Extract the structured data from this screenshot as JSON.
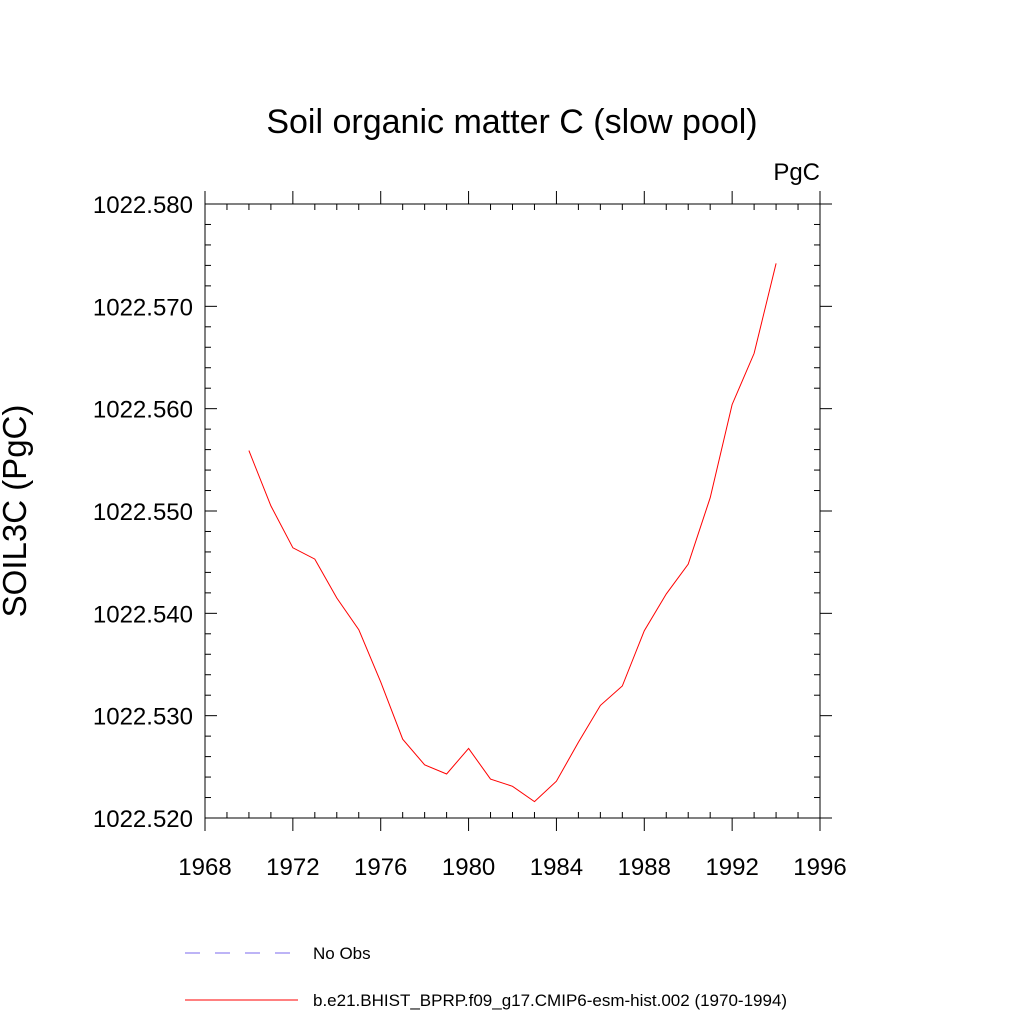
{
  "chart_data": {
    "type": "line",
    "title": "Soil organic matter C (slow pool)",
    "units": "PgC",
    "ylabel": "SOIL3C  (PgC)",
    "xlabel": "",
    "xlim": [
      1968,
      1996
    ],
    "ylim": [
      1022.52,
      1022.58
    ],
    "x_ticks": [
      1968,
      1972,
      1976,
      1980,
      1984,
      1988,
      1992,
      1996
    ],
    "x_tick_labels": [
      "1968",
      "1972",
      "1976",
      "1980",
      "1984",
      "1988",
      "1992",
      "1996"
    ],
    "y_ticks": [
      1022.52,
      1022.53,
      1022.54,
      1022.55,
      1022.56,
      1022.57,
      1022.58
    ],
    "y_tick_labels": [
      "1022.520",
      "1022.530",
      "1022.540",
      "1022.550",
      "1022.560",
      "1022.570",
      "1022.580"
    ],
    "grid": false,
    "legend_position": "bottom",
    "series": [
      {
        "name": "b.e21.BHIST_BPRP.f09_g17.CMIP6-esm-hist.002 (1970-1994)",
        "color": "#ff0000",
        "style": "solid",
        "x": [
          1970,
          1971,
          1972,
          1973,
          1974,
          1975,
          1976,
          1977,
          1978,
          1979,
          1980,
          1981,
          1982,
          1983,
          1984,
          1985,
          1986,
          1987,
          1988,
          1989,
          1990,
          1991,
          1992,
          1993,
          1994
        ],
        "y": [
          1022.5559,
          1022.5505,
          1022.5464,
          1022.5453,
          1022.5415,
          1022.5384,
          1022.5333,
          1022.5277,
          1022.5252,
          1022.5243,
          1022.5268,
          1022.5238,
          1022.5231,
          1022.5216,
          1022.5236,
          1022.5274,
          1022.531,
          1022.5329,
          1022.5383,
          1022.5419,
          1022.5448,
          1022.5513,
          1022.5604,
          1022.5654,
          1022.5742
        ]
      }
    ],
    "legend": [
      {
        "label": "No Obs",
        "color": "#7b68ee",
        "style": "dashed"
      },
      {
        "label": "b.e21.BHIST_BPRP.f09_g17.CMIP6-esm-hist.002 (1970-1994)",
        "color": "#ff0000",
        "style": "solid"
      }
    ]
  }
}
